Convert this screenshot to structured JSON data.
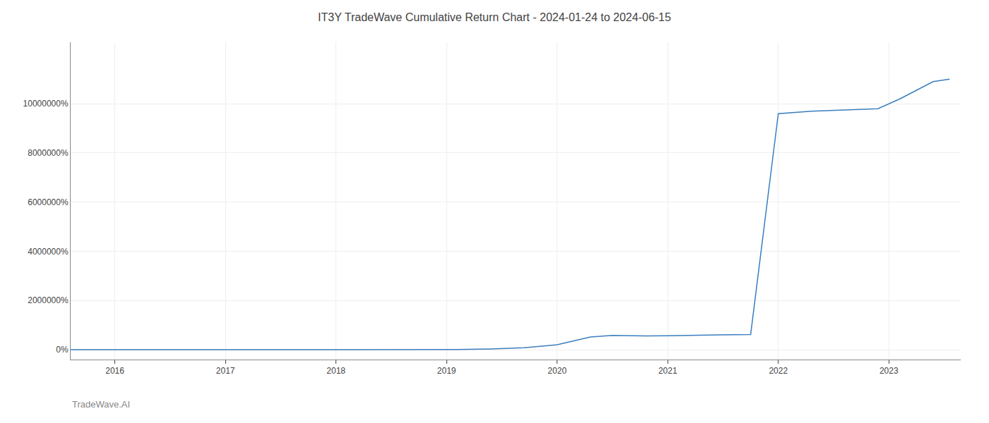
{
  "chart_data": {
    "type": "line",
    "title": "IT3Y TradeWave Cumulative Return Chart - 2024-01-24 to 2024-06-15",
    "annotations": [
      "TradeWave.AI"
    ],
    "x": [
      2015.6,
      2016.0,
      2016.5,
      2017.0,
      2017.5,
      2018.0,
      2018.5,
      2018.9,
      2019.1,
      2019.4,
      2019.7,
      2020.0,
      2020.3,
      2020.5,
      2020.8,
      2021.0,
      2021.15,
      2021.3,
      2021.5,
      2021.75,
      2022.0,
      2022.3,
      2022.6,
      2022.9,
      2023.1,
      2023.4,
      2023.55
    ],
    "values": [
      0,
      0,
      0,
      0,
      0,
      0,
      0,
      0,
      5000,
      30000,
      80000,
      200000,
      520000,
      580000,
      560000,
      570000,
      580000,
      590000,
      600000,
      620000,
      9600000,
      9700000,
      9750000,
      9800000,
      10200000,
      10900000,
      11000000
    ],
    "color": "#3a7ebf",
    "xlim": [
      2015.6,
      2023.65
    ],
    "xticks": [
      2016,
      2017,
      2018,
      2019,
      2020,
      2021,
      2022,
      2023
    ],
    "ylim": [
      -400000,
      12500000
    ],
    "yticks": [
      {
        "value": 0,
        "label": "0%"
      },
      {
        "value": 2000000,
        "label": "2000000%"
      },
      {
        "value": 4000000,
        "label": "4000000%"
      },
      {
        "value": 6000000,
        "label": "6000000%"
      },
      {
        "value": 8000000,
        "label": "8000000%"
      },
      {
        "value": 10000000,
        "label": "10000000%"
      }
    ],
    "grid": true
  }
}
